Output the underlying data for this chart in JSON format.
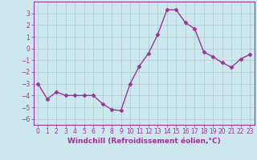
{
  "x": [
    0,
    1,
    2,
    3,
    4,
    5,
    6,
    7,
    8,
    9,
    10,
    11,
    12,
    13,
    14,
    15,
    16,
    17,
    18,
    19,
    20,
    21,
    22,
    23
  ],
  "y": [
    -3.0,
    -4.3,
    -3.7,
    -4.0,
    -4.0,
    -4.0,
    -4.0,
    -4.7,
    -5.2,
    -5.3,
    -3.0,
    -1.5,
    -0.4,
    1.2,
    3.3,
    3.3,
    2.2,
    1.7,
    -0.3,
    -0.7,
    -1.2,
    -1.6,
    -0.9,
    -0.5
  ],
  "xlim": [
    -0.5,
    23.5
  ],
  "ylim": [
    -6.5,
    4.0
  ],
  "yticks": [
    -6,
    -5,
    -4,
    -3,
    -2,
    -1,
    0,
    1,
    2,
    3
  ],
  "xticks": [
    0,
    1,
    2,
    3,
    4,
    5,
    6,
    7,
    8,
    9,
    10,
    11,
    12,
    13,
    14,
    15,
    16,
    17,
    18,
    19,
    20,
    21,
    22,
    23
  ],
  "line_color": "#993399",
  "marker": "D",
  "marker_size": 2.5,
  "bg_color": "#cce8ee",
  "grid_color": "#aacccc",
  "xlabel": "Windchill (Refroidissement éolien,°C)",
  "xlabel_fontsize": 6.5,
  "tick_fontsize": 5.5,
  "line_width": 1.0
}
